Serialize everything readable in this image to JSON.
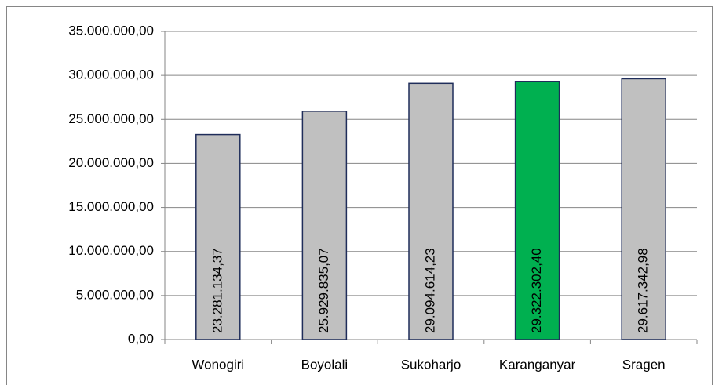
{
  "chart_data": {
    "type": "bar",
    "categories": [
      "Wonogiri",
      "Boyolali",
      "Sukoharjo",
      "Karanganyar",
      "Sragen"
    ],
    "values": [
      23281134.37,
      25929835.07,
      29094614.23,
      29322302.4,
      29617342.98
    ],
    "value_labels": [
      "23.281.134,37",
      "25.929.835,07",
      "29.094.614,23",
      "29.322.302,40",
      "29.617.342,98"
    ],
    "colors": [
      "#c0c0c0",
      "#c0c0c0",
      "#c0c0c0",
      "#00b050",
      "#c0c0c0"
    ],
    "ylim": [
      0,
      35000000
    ],
    "yticks": [
      {
        "value": 0,
        "label": "0,00"
      },
      {
        "value": 5000000,
        "label": "5.000.000,00"
      },
      {
        "value": 10000000,
        "label": "10.000.000,00"
      },
      {
        "value": 15000000,
        "label": "15.000.000,00"
      },
      {
        "value": 20000000,
        "label": "20.000.000,00"
      },
      {
        "value": 25000000,
        "label": "25.000.000,00"
      },
      {
        "value": 30000000,
        "label": "30.000.000,00"
      },
      {
        "value": 35000000,
        "label": "35.000.000,00"
      }
    ],
    "grid": true
  }
}
